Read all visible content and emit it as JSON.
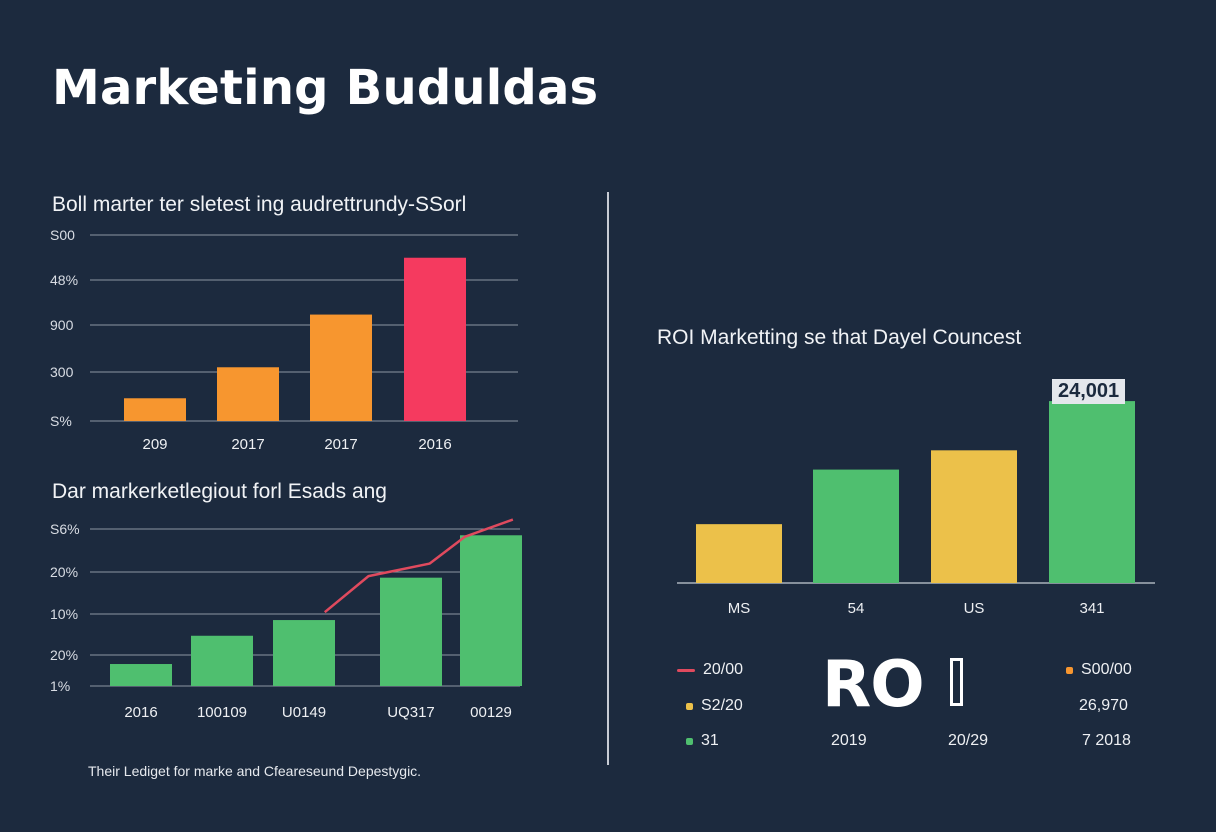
{
  "title": "Marketing Buduldas",
  "footnote": "Their Lediget for marke and Cfeareseund Depestygic.",
  "colors": {
    "background": "#1c2a3e",
    "orange": "#f7962f",
    "pink": "#f53a5f",
    "green": "#4fbf6f",
    "yellow": "#ecc14a",
    "line": "#e04a5e"
  },
  "chart_data": [
    {
      "type": "bar",
      "title": "Boll marter ter sletest ing audrettrundy-SSorl",
      "yticks": [
        "S00",
        "48%",
        "900",
        "300",
        "S%"
      ],
      "categories": [
        "209",
        "2017",
        "2017",
        "2016"
      ],
      "values": [
        22,
        52,
        103,
        158
      ],
      "ylim": [
        0,
        180
      ],
      "bar_colors": [
        "#f7962f",
        "#f7962f",
        "#f7962f",
        "#f53a5f"
      ],
      "grid": true
    },
    {
      "type": "bar",
      "title": "Dar markerketlegiout forl Esads ang",
      "yticks": [
        "S6%",
        "20%",
        "10%",
        "20%",
        "1%"
      ],
      "categories": [
        "2016",
        "100109",
        "U0149",
        "UQ317",
        "00129"
      ],
      "values": [
        14,
        32,
        42,
        69,
        96
      ],
      "ylim": [
        0,
        100
      ],
      "bar_color": "#4fbf6f",
      "line_series": [
        {
          "x": 3.1,
          "y": 47
        },
        {
          "x": 3.6,
          "y": 70
        },
        {
          "x": 4.3,
          "y": 78
        },
        {
          "x": 4.7,
          "y": 95
        },
        {
          "x": 5.25,
          "y": 106
        }
      ],
      "grid": true
    },
    {
      "type": "bar",
      "title": "ROI Marketting se that Dayel Councest",
      "categories": [
        "MS",
        "54",
        "US",
        "341"
      ],
      "values": [
        55,
        106,
        124,
        170
      ],
      "ylim": [
        0,
        200
      ],
      "bar_colors": [
        "#ecc14a",
        "#4fbf6f",
        "#ecc14a",
        "#4fbf6f"
      ],
      "value_label": "24,001",
      "grid": false
    }
  ],
  "legend": {
    "left": [
      {
        "label": "20/00",
        "marker": "line",
        "color": "#e04a5e"
      },
      {
        "label": "S2/20",
        "marker": "dot",
        "color": "#ecc14a"
      },
      {
        "label": "31",
        "marker": "dot",
        "color": "#4fbf6f"
      }
    ],
    "right": [
      {
        "label": "S00/00",
        "marker": "dot",
        "color": "#f7962f"
      },
      {
        "label": "26,970",
        "marker": "none"
      },
      {
        "label": "7 2018",
        "marker": "none"
      }
    ],
    "center": [
      "2019",
      "20/29"
    ],
    "big_text": "RO"
  }
}
